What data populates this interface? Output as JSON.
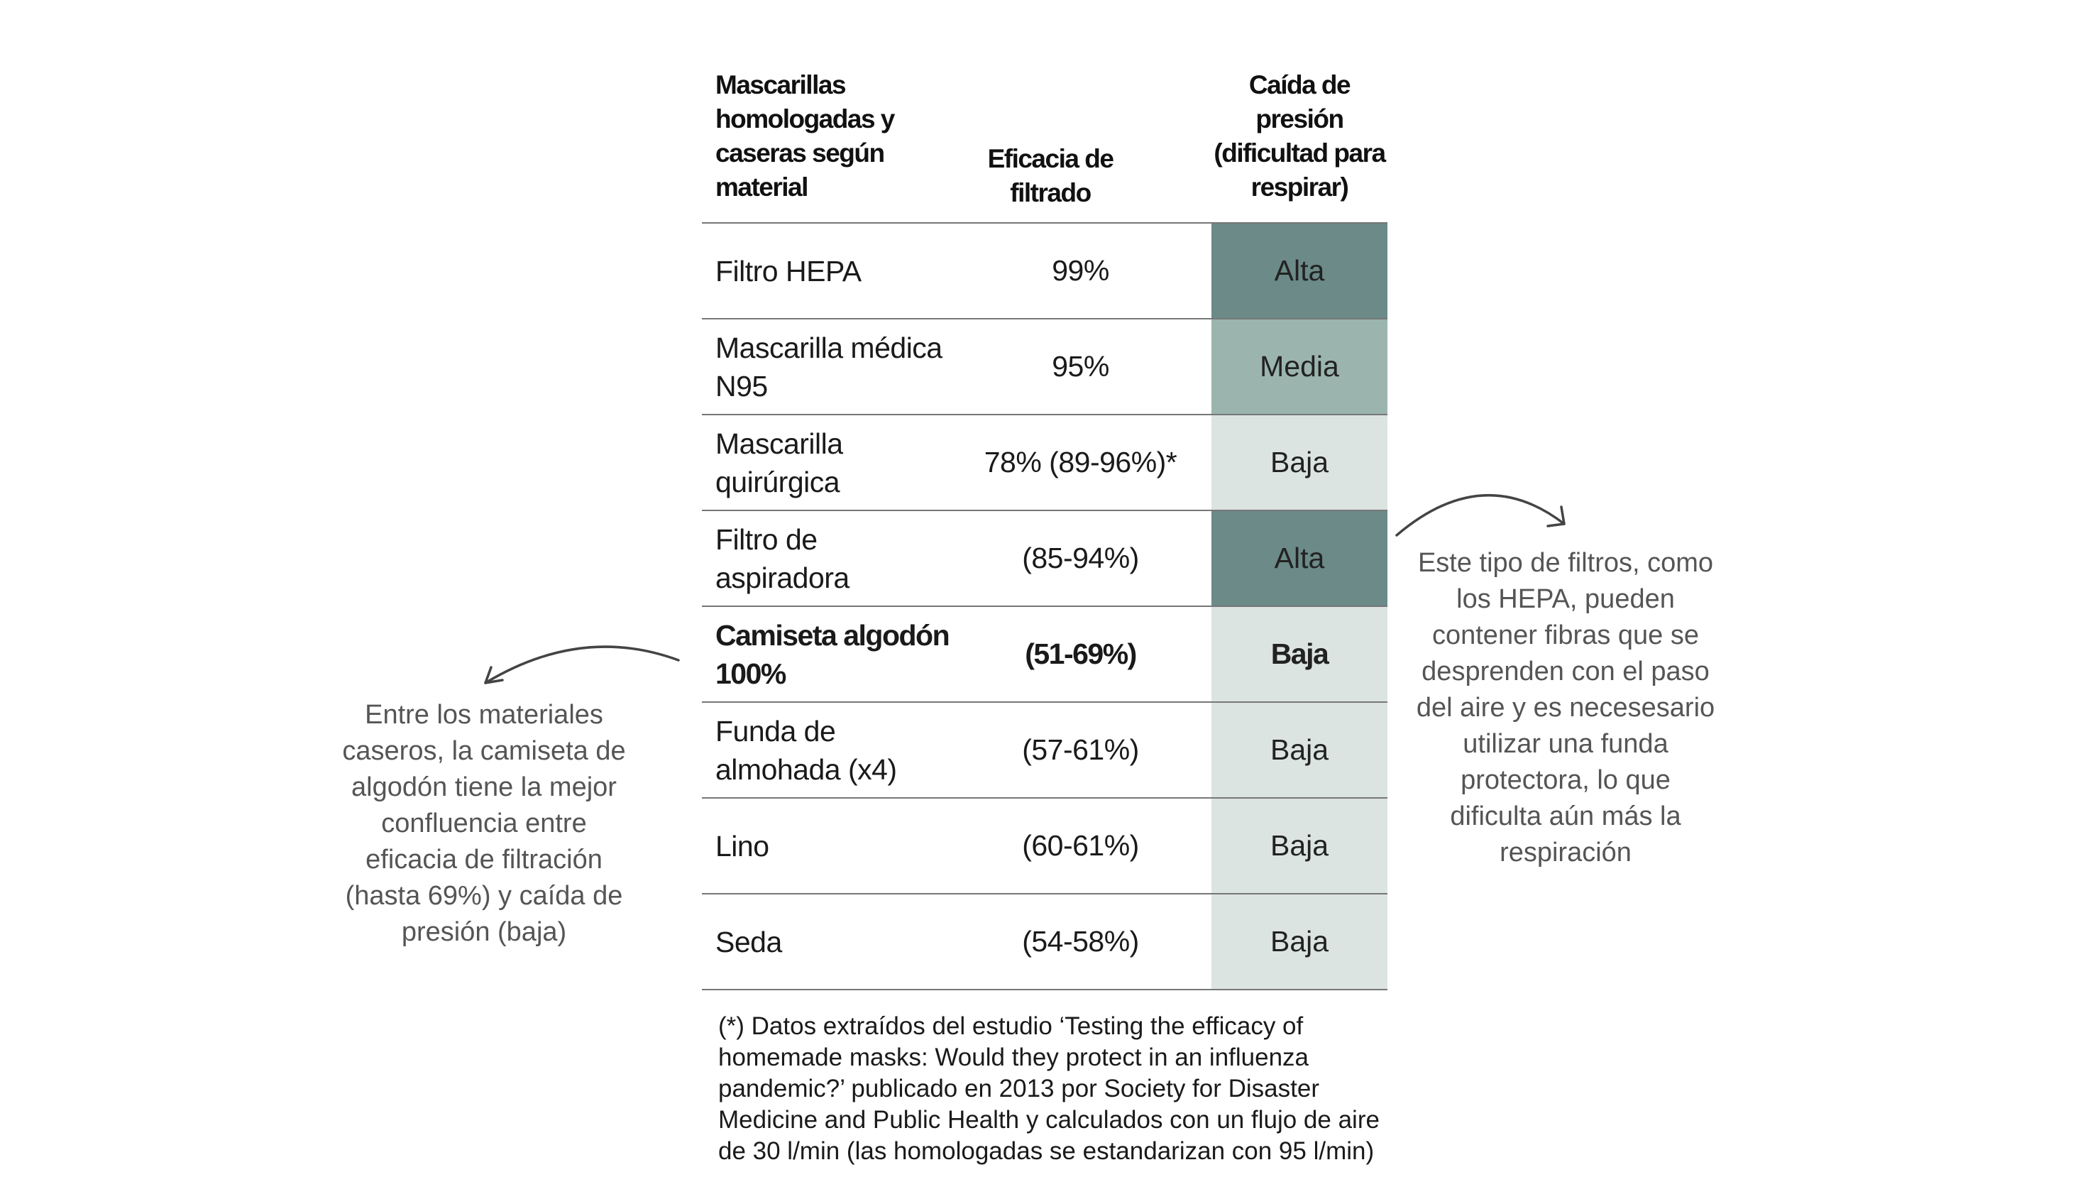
{
  "header": {
    "col1": "Mascarillas homologadas y caseras según material",
    "col2": "Eficacia de filtrado",
    "col3": "Caída de presión (dificultad para respirar)"
  },
  "rows": [
    {
      "material": "Filtro HEPA",
      "efficacy": "99%",
      "pressure_drop": "Alta",
      "bold": false
    },
    {
      "material": "Mascarilla médica N95",
      "efficacy": "95%",
      "pressure_drop": "Media",
      "bold": false
    },
    {
      "material": "Mascarilla quirúrgica",
      "efficacy": "78% (89-96%)*",
      "pressure_drop": "Baja",
      "bold": false
    },
    {
      "material": "Filtro de aspiradora",
      "efficacy": "(85-94%)",
      "pressure_drop": "Alta",
      "bold": false
    },
    {
      "material": "Camiseta algodón 100%",
      "efficacy": "(51-69%)",
      "pressure_drop": "Baja",
      "bold": true
    },
    {
      "material": "Funda de almohada (x4)",
      "efficacy": "(57-61%)",
      "pressure_drop": "Baja",
      "bold": false
    },
    {
      "material": "Lino",
      "efficacy": "(60-61%)",
      "pressure_drop": "Baja",
      "bold": false
    },
    {
      "material": "Seda",
      "efficacy": "(54-58%)",
      "pressure_drop": "Baja",
      "bold": false
    }
  ],
  "level_colors": {
    "Alta": "#6b8a88",
    "Media": "#9bb5ae",
    "Baja": "#dce4e2"
  },
  "notes": {
    "left": "Entre los materiales caseros, la camiseta de algodón tiene la mejor confluencia entre eficacia de filtración (hasta 69%) y caída de presión (baja)",
    "right": "Este tipo de filtros, como los HEPA, pueden contener fibras que se desprenden con el paso del aire y es necesesario utilizar una funda protectora, lo que dificulta aún más la respiración"
  },
  "footnote": "(*) Datos extraídos del estudio ‘Testing the efficacy of homemade masks: Would they protect in an influenza pandemic?’ publicado en 2013 por Society for Disaster Medicine and Public Health y calculados con un flujo de aire de 30 l/min (las homologadas se estandarizan con 95 l/min)"
}
